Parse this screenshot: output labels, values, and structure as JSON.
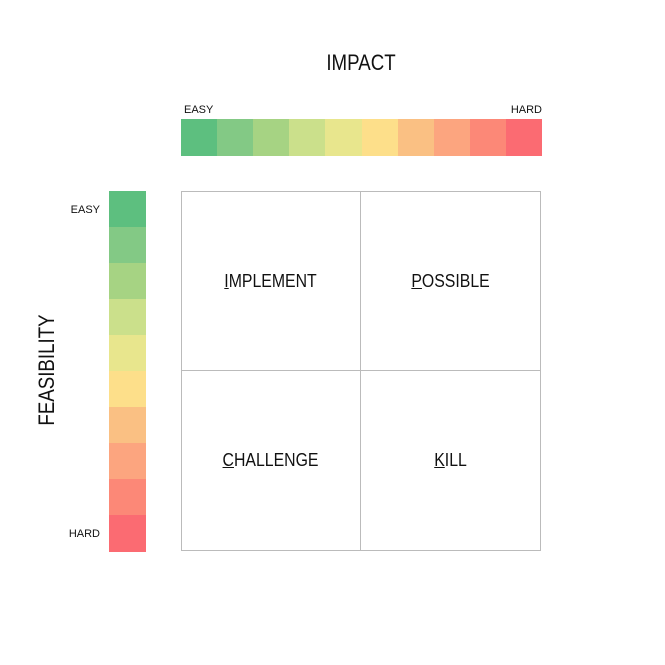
{
  "impact": {
    "title": "IMPACT",
    "easy": "EASY",
    "hard": "HARD"
  },
  "feasibility": {
    "title": "FEASIBILITY",
    "easy": "EASY",
    "hard": "HARD"
  },
  "scale_colors": [
    "#5dbf7f",
    "#83c985",
    "#a6d383",
    "#cbe08b",
    "#e8e68d",
    "#fddf8a",
    "#fac083",
    "#fca57f",
    "#fc8877",
    "#fb6b72"
  ],
  "quadrants": [
    "IMPLEMENT",
    "POSSIBLE",
    "CHALLENGE",
    "KILL"
  ]
}
